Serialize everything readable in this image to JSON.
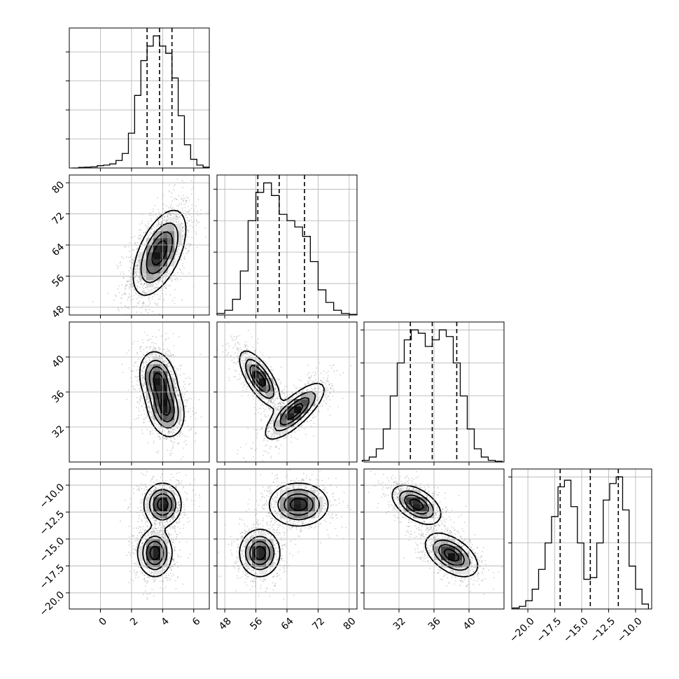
{
  "chart_data": {
    "type": "corner",
    "grid": true,
    "variables": [
      {
        "range": [
          -2.0,
          7.0
        ],
        "ticks": [
          0,
          2,
          4,
          6
        ],
        "tick_labels": [
          "0",
          "2",
          "4",
          "6"
        ],
        "quantiles": [
          3.0,
          3.8,
          4.6
        ],
        "hist_bins": [
          -1.8,
          -1.4,
          -1.0,
          -0.6,
          -0.2,
          0.2,
          0.6,
          1.0,
          1.4,
          1.8,
          2.2,
          2.6,
          3.0,
          3.4,
          3.8,
          4.2,
          4.6,
          5.0,
          5.4,
          5.8,
          6.2,
          6.6,
          7.0
        ],
        "hist_values": [
          0,
          2,
          3,
          4,
          8,
          10,
          14,
          26,
          50,
          120,
          250,
          370,
          420,
          455,
          420,
          395,
          310,
          180,
          80,
          30,
          10,
          3
        ]
      },
      {
        "range": [
          46,
          82
        ],
        "ticks": [
          48,
          56,
          64,
          72,
          80
        ],
        "tick_labels": [
          "48",
          "56",
          "64",
          "72",
          "80"
        ],
        "quantiles": [
          56.5,
          62.0,
          68.5
        ],
        "hist_bins": [
          46,
          48,
          50,
          52,
          54,
          56,
          58,
          60,
          62,
          64,
          66,
          68,
          70,
          72,
          74,
          76,
          78,
          80,
          82
        ],
        "hist_values": [
          5,
          15,
          50,
          140,
          300,
          390,
          420,
          380,
          320,
          300,
          280,
          250,
          170,
          80,
          40,
          15,
          5,
          2
        ]
      },
      {
        "range": [
          28,
          44
        ],
        "ticks": [
          32,
          36,
          40
        ],
        "tick_labels": [
          "32",
          "36",
          "40"
        ],
        "quantiles": [
          33.3,
          35.8,
          38.6
        ],
        "hist_bins": [
          27.8,
          28.6,
          29.4,
          30.2,
          31.0,
          31.8,
          32.6,
          33.4,
          34.2,
          35.0,
          35.8,
          36.6,
          37.4,
          38.2,
          39.0,
          39.8,
          40.6,
          41.4,
          42.2,
          43.0,
          43.8
        ],
        "hist_values": [
          5,
          15,
          40,
          100,
          200,
          300,
          370,
          400,
          390,
          350,
          370,
          400,
          380,
          300,
          200,
          100,
          40,
          15,
          5,
          2
        ]
      },
      {
        "range": [
          -21.5,
          -8.5
        ],
        "ticks": [
          -20.0,
          -17.5,
          -15.0,
          -12.5,
          -10.0
        ],
        "tick_labels": [
          "−20.0",
          "−17.5",
          "−15.0",
          "−12.5",
          "−10.0"
        ],
        "quantiles": [
          -17.0,
          -14.2,
          -11.6
        ],
        "hist_bins": [
          -21.4,
          -20.8,
          -20.2,
          -19.6,
          -19.0,
          -18.4,
          -17.8,
          -17.2,
          -16.6,
          -16.0,
          -15.4,
          -14.8,
          -14.2,
          -13.6,
          -13.0,
          -12.4,
          -11.8,
          -11.2,
          -10.6,
          -10.0,
          -9.4,
          -8.8
        ],
        "hist_values": [
          3,
          8,
          25,
          60,
          120,
          200,
          280,
          370,
          390,
          310,
          200,
          90,
          95,
          200,
          330,
          380,
          400,
          300,
          130,
          60,
          15
        ]
      }
    ],
    "hist_max": [
      455,
      420,
      400,
      400
    ],
    "hist_yticks": [
      [
        100,
        200,
        300,
        400
      ],
      [
        100,
        200,
        300,
        400
      ],
      [
        100,
        200,
        300,
        400
      ],
      [
        200,
        400
      ]
    ],
    "pairs": [
      {
        "row": 1,
        "col": 0,
        "blobs": [
          {
            "mx": 3.8,
            "my": 62,
            "sx": 0.85,
            "sy": 5.5,
            "rho": 0.55,
            "w": 1
          }
        ]
      },
      {
        "row": 2,
        "col": 0,
        "blobs": [
          {
            "mx": 3.7,
            "my": 37.5,
            "sx": 0.6,
            "sy": 1.6,
            "rho": -0.2,
            "w": 1
          },
          {
            "mx": 4.2,
            "my": 34.0,
            "sx": 0.6,
            "sy": 1.6,
            "rho": -0.2,
            "w": 1
          }
        ]
      },
      {
        "row": 2,
        "col": 1,
        "blobs": [
          {
            "mx": 57,
            "my": 37.5,
            "sx": 2.6,
            "sy": 1.6,
            "rho": -0.7,
            "w": 1
          },
          {
            "mx": 66,
            "my": 33.8,
            "sx": 3.8,
            "sy": 1.6,
            "rho": 0.78,
            "w": 1
          }
        ]
      },
      {
        "row": 3,
        "col": 0,
        "blobs": [
          {
            "mx": 4.0,
            "my": -11.8,
            "sx": 0.6,
            "sy": 1.0,
            "rho": 0.0,
            "w": 1
          },
          {
            "mx": 3.5,
            "my": -16.3,
            "sx": 0.55,
            "sy": 1.1,
            "rho": 0.0,
            "w": 1
          }
        ]
      },
      {
        "row": 3,
        "col": 1,
        "blobs": [
          {
            "mx": 67,
            "my": -11.8,
            "sx": 3.8,
            "sy": 1.0,
            "rho": 0.0,
            "w": 1
          },
          {
            "mx": 57,
            "my": -16.3,
            "sx": 2.6,
            "sy": 1.1,
            "rho": 0.0,
            "w": 1
          }
        ]
      },
      {
        "row": 3,
        "col": 2,
        "blobs": [
          {
            "mx": 34.0,
            "my": -11.8,
            "sx": 1.4,
            "sy": 0.9,
            "rho": -0.5,
            "w": 1
          },
          {
            "mx": 38.0,
            "my": -16.5,
            "sx": 1.5,
            "sy": 1.0,
            "rho": -0.5,
            "w": 1
          }
        ]
      }
    ]
  }
}
